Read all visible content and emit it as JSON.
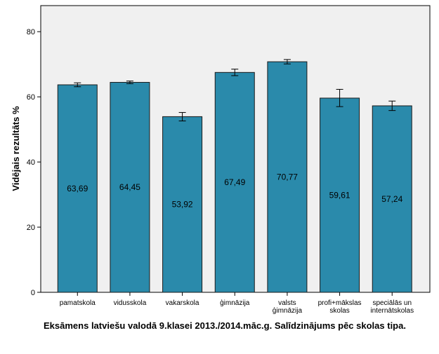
{
  "chart_data": {
    "type": "bar",
    "categories": [
      "pamatskola",
      "vidusskola",
      "vakarskola",
      "ģimnāzija",
      "valsts ģimnāzija",
      "profi+mākslas skolas",
      "speciālās un internātskolas"
    ],
    "category_label_lines": [
      [
        "pamatskola"
      ],
      [
        "vidusskola"
      ],
      [
        "vakarskola"
      ],
      [
        "ģimnāzija"
      ],
      [
        "valsts",
        "ģimnāzija"
      ],
      [
        "profi+mākslas",
        "skolas"
      ],
      [
        "speciālās un",
        "internātskolas"
      ]
    ],
    "values": [
      63.69,
      64.45,
      53.92,
      67.49,
      70.77,
      59.61,
      57.24
    ],
    "value_labels": [
      "63,69",
      "64,45",
      "53,92",
      "67,49",
      "70,77",
      "59,61",
      "57,24"
    ],
    "error_low": [
      63.1,
      64.05,
      52.6,
      66.5,
      70.1,
      57.0,
      55.8
    ],
    "error_high": [
      64.3,
      64.85,
      55.2,
      68.5,
      71.45,
      62.3,
      58.7
    ],
    "ylabel": "Vidējais rezultāts %",
    "xlabel": "Eksāmens latviešu valodā 9.klasei 2013./2014.māc.g. Salīdzinājums pēc skolas tipa.",
    "ylim": [
      0,
      88
    ],
    "yticks": [
      0,
      20,
      40,
      60,
      80
    ],
    "grid": false,
    "colors": {
      "bar": "#2a8aab",
      "bar_edge": "#1a1a1a",
      "plot_bg": "#f0f0f0",
      "axis": "#000000"
    }
  }
}
